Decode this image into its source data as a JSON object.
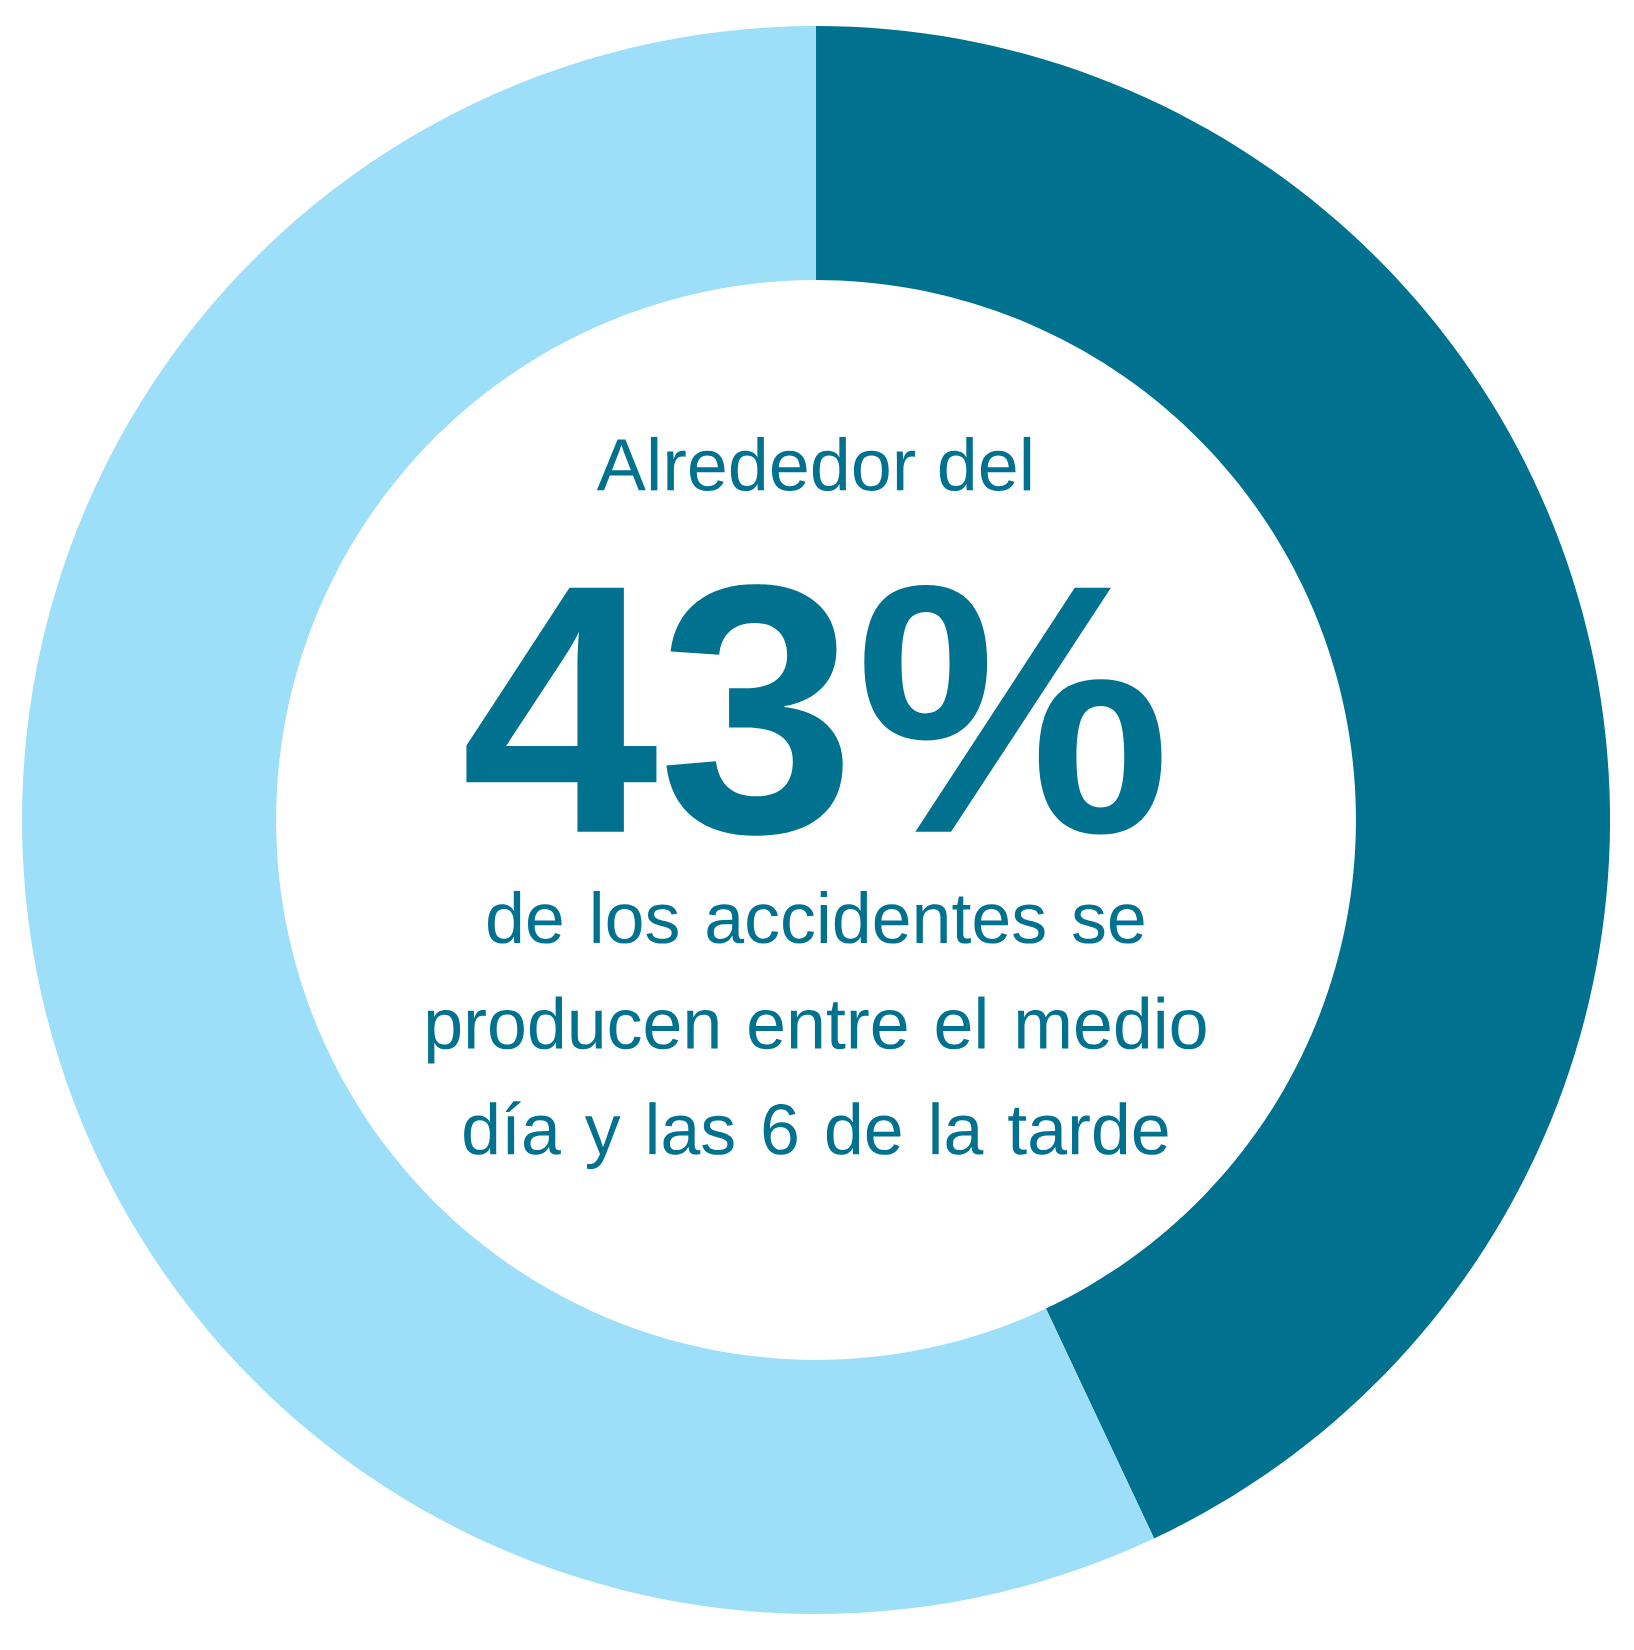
{
  "chart_data": {
    "type": "donut",
    "title": "Alrededor del",
    "categories": [
      null,
      null
    ],
    "values": [
      43,
      57
    ],
    "colors": [
      "#00718f",
      "#9ddff8"
    ],
    "value_labels": [
      "43%",
      null
    ],
    "annotations": [
      "de los accidentes se producen entre el medio día y las 6 de la tarde"
    ]
  }
}
